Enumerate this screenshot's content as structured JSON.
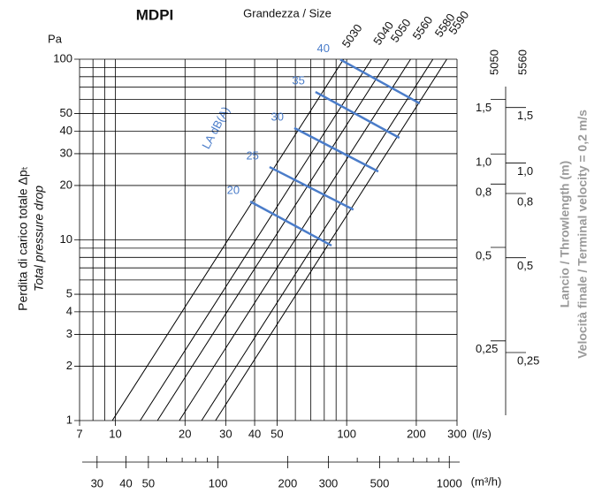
{
  "chart_data": {
    "type": "line",
    "title": "MDPI",
    "subtitle": "Grandezza / Size",
    "y_unit": "Pa",
    "x_unit": "(l/s)",
    "x2_unit": "(m³/h)",
    "ylabel": "Perdita di carico totale Δpₜ",
    "ylabel2": "Total pressure drop",
    "log_x": true,
    "log_y": true,
    "grid": true,
    "xlim": [
      7,
      300
    ],
    "xticks": [
      7,
      10,
      20,
      30,
      40,
      50,
      100,
      200,
      300
    ],
    "xminor": [
      8,
      9,
      60,
      70,
      80,
      90
    ],
    "ylim": [
      1,
      100
    ],
    "yticks": [
      1,
      2,
      3,
      4,
      5,
      10,
      20,
      30,
      40,
      50,
      100
    ],
    "yminor": [
      6,
      7,
      8,
      9,
      60,
      70,
      80,
      90
    ],
    "x2lim": [
      25.2,
      1080
    ],
    "x2ticks": [
      30,
      40,
      50,
      100,
      200,
      300,
      500,
      1000
    ],
    "x2minor": [
      60,
      70,
      80,
      90,
      400,
      600,
      700,
      800,
      900
    ],
    "series": [
      {
        "name": "5030",
        "color": "#000000",
        "x": [
          9.7,
          97
        ],
        "values": [
          1,
          100
        ]
      },
      {
        "name": "5040",
        "color": "#000000",
        "x": [
          12.8,
          128
        ],
        "values": [
          1,
          100
        ]
      },
      {
        "name": "5050",
        "color": "#000000",
        "x": [
          15.2,
          152
        ],
        "values": [
          1,
          100
        ]
      },
      {
        "name": "5560",
        "color": "#000000",
        "x": [
          18.9,
          189
        ],
        "values": [
          1,
          100
        ]
      },
      {
        "name": "5580",
        "color": "#000000",
        "x": [
          23.6,
          236
        ],
        "values": [
          1,
          100
        ]
      },
      {
        "name": "5590",
        "color": "#000000",
        "x": [
          27.1,
          271
        ],
        "values": [
          1,
          100
        ]
      }
    ],
    "noise_label": "LA dB(A)",
    "noise": [
      {
        "name": "20",
        "color": "#4a7cc9",
        "x": [
          38.3,
          86
        ],
        "values": [
          16.3,
          9.3
        ]
      },
      {
        "name": "25",
        "color": "#4a7cc9",
        "x": [
          46.4,
          106.9
        ],
        "values": [
          25.3,
          14.7
        ]
      },
      {
        "name": "30",
        "color": "#4a7cc9",
        "x": [
          59.4,
          137
        ],
        "values": [
          41.6,
          23.9
        ]
      },
      {
        "name": "35",
        "color": "#4a7cc9",
        "x": [
          73.3,
          169
        ],
        "values": [
          65.9,
          36.7
        ]
      },
      {
        "name": "40",
        "color": "#4a7cc9",
        "x": [
          93.9,
          207
        ],
        "values": [
          99.5,
          56.9
        ]
      }
    ],
    "throw_label": "Lancio / Throwlength (m)",
    "velocity_label": "Velocità finale / Terminal velocity = 0,2 m/s",
    "throw_scales": [
      {
        "name": "5050",
        "ylim": [
          0.144,
          2.1
        ],
        "ticks": [
          {
            "value": 1.5,
            "label": "1,5"
          },
          {
            "value": 1,
            "label": "1,0"
          },
          {
            "value": 0.8,
            "label": "0,8"
          },
          {
            "value": 0.5,
            "label": "0,5"
          },
          {
            "value": 0.25,
            "label": "0,25"
          }
        ]
      },
      {
        "name": "5560",
        "ylim": [
          0.158,
          2.22
        ],
        "ticks": [
          {
            "value": 1.5,
            "label": "1,5"
          },
          {
            "value": 1,
            "label": "1,0"
          },
          {
            "value": 0.8,
            "label": "0,8"
          },
          {
            "value": 0.5,
            "label": "0,5"
          },
          {
            "value": 0.25,
            "label": "0,25"
          }
        ]
      }
    ]
  }
}
